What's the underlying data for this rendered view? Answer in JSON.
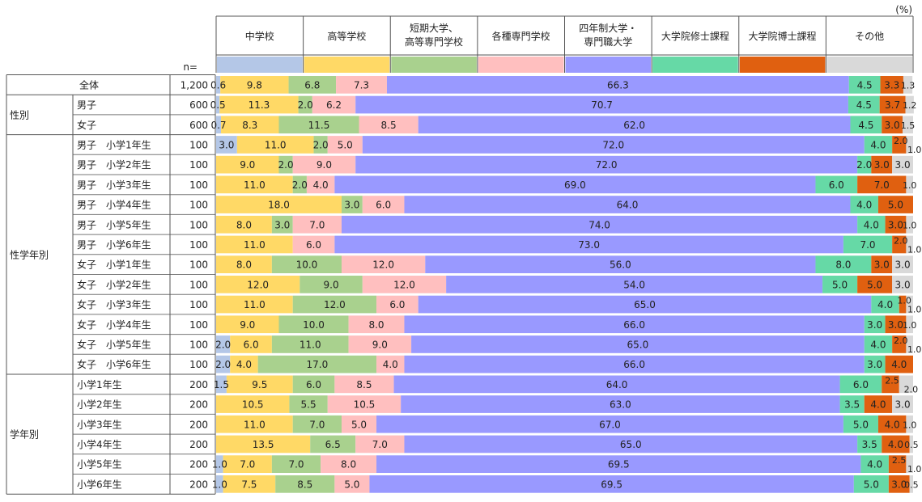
{
  "chart_data": {
    "type": "bar",
    "stacked": true,
    "orientation": "horizontal",
    "unit_label": "(%)",
    "n_label": "n=",
    "series": [
      {
        "name": "中学校",
        "name_lines": [
          "中学校"
        ],
        "color": "#b4c7e7"
      },
      {
        "name": "高等学校",
        "name_lines": [
          "高等学校"
        ],
        "color": "#ffd966"
      },
      {
        "name": "短期大学、高等専門学校",
        "name_lines": [
          "短期大学、",
          "高等専門学校"
        ],
        "color": "#a9d18e"
      },
      {
        "name": "各種専門学校",
        "name_lines": [
          "各種専門学校"
        ],
        "color": "#ffbfbf"
      },
      {
        "name": "四年制大学・専門職大学",
        "name_lines": [
          "四年制大学・",
          "専門職大学"
        ],
        "color": "#9999ff"
      },
      {
        "name": "大学院修士課程",
        "name_lines": [
          "大学院修士課程"
        ],
        "color": "#66d9a6"
      },
      {
        "name": "大学院博士課程",
        "name_lines": [
          "大学院博士課程"
        ],
        "color": "#e06010"
      },
      {
        "name": "その他",
        "name_lines": [
          "その他"
        ],
        "color": "#d9d9d9"
      }
    ],
    "groups": [
      {
        "label": "",
        "rows": [
          {
            "label": "全体",
            "n": "1,200",
            "values": [
              0.6,
              9.8,
              6.8,
              7.3,
              66.3,
              4.5,
              3.3,
              1.3
            ]
          }
        ]
      },
      {
        "label": "性別",
        "rows": [
          {
            "label": "男子",
            "n": "600",
            "values": [
              0.5,
              11.3,
              2.0,
              6.2,
              70.7,
              4.5,
              3.7,
              1.2
            ]
          },
          {
            "label": "女子",
            "n": "600",
            "values": [
              0.7,
              8.3,
              11.5,
              8.5,
              62.0,
              4.5,
              3.0,
              1.5
            ]
          }
        ]
      },
      {
        "label": "性学年別",
        "rows": [
          {
            "label": "男子　小学1年生",
            "n": "100",
            "values": [
              3.0,
              11.0,
              2.0,
              5.0,
              72.0,
              4.0,
              2.0,
              1.0
            ]
          },
          {
            "label": "男子　小学2年生",
            "n": "100",
            "values": [
              0,
              9.0,
              2.0,
              9.0,
              72.0,
              2.0,
              3.0,
              3.0
            ]
          },
          {
            "label": "男子　小学3年生",
            "n": "100",
            "values": [
              0,
              11.0,
              2.0,
              4.0,
              69.0,
              6.0,
              7.0,
              1.0
            ]
          },
          {
            "label": "男子　小学4年生",
            "n": "100",
            "values": [
              0,
              18.0,
              3.0,
              6.0,
              64.0,
              4.0,
              5.0,
              0
            ]
          },
          {
            "label": "男子　小学5年生",
            "n": "100",
            "values": [
              0,
              8.0,
              3.0,
              7.0,
              74.0,
              4.0,
              3.0,
              1.0
            ]
          },
          {
            "label": "男子　小学6年生",
            "n": "100",
            "values": [
              0,
              11.0,
              0,
              6.0,
              73.0,
              7.0,
              2.0,
              1.0
            ]
          },
          {
            "label": "女子　小学1年生",
            "n": "100",
            "values": [
              0,
              8.0,
              10.0,
              12.0,
              56.0,
              8.0,
              3.0,
              3.0
            ]
          },
          {
            "label": "女子　小学2年生",
            "n": "100",
            "values": [
              0,
              12.0,
              9.0,
              12.0,
              54.0,
              5.0,
              5.0,
              3.0
            ]
          },
          {
            "label": "女子　小学3年生",
            "n": "100",
            "values": [
              0,
              11.0,
              12.0,
              6.0,
              65.0,
              4.0,
              1.0,
              1.0
            ]
          },
          {
            "label": "女子　小学4年生",
            "n": "100",
            "values": [
              0,
              9.0,
              10.0,
              8.0,
              66.0,
              3.0,
              3.0,
              1.0
            ]
          },
          {
            "label": "女子　小学5年生",
            "n": "100",
            "values": [
              2.0,
              6.0,
              11.0,
              9.0,
              65.0,
              4.0,
              2.0,
              1.0
            ]
          },
          {
            "label": "女子　小学6年生",
            "n": "100",
            "values": [
              2.0,
              4.0,
              17.0,
              4.0,
              66.0,
              3.0,
              4.0,
              0
            ]
          }
        ]
      },
      {
        "label": "学年別",
        "rows": [
          {
            "label": "小学1年生",
            "n": "200",
            "values": [
              1.5,
              9.5,
              6.0,
              8.5,
              64.0,
              6.0,
              2.5,
              2.0
            ]
          },
          {
            "label": "小学2年生",
            "n": "200",
            "values": [
              0,
              10.5,
              5.5,
              10.5,
              63.0,
              3.5,
              4.0,
              3.0
            ]
          },
          {
            "label": "小学3年生",
            "n": "200",
            "values": [
              0,
              11.0,
              7.0,
              5.0,
              67.0,
              5.0,
              4.0,
              1.0
            ]
          },
          {
            "label": "小学4年生",
            "n": "200",
            "values": [
              0,
              13.5,
              6.5,
              7.0,
              65.0,
              3.5,
              4.0,
              0.5
            ]
          },
          {
            "label": "小学5年生",
            "n": "200",
            "values": [
              1.0,
              7.0,
              7.0,
              8.0,
              69.5,
              4.0,
              2.5,
              1.0
            ]
          },
          {
            "label": "小学6年生",
            "n": "200",
            "values": [
              1.0,
              7.5,
              8.5,
              5.0,
              69.5,
              5.0,
              3.0,
              0.5
            ]
          }
        ]
      }
    ]
  }
}
